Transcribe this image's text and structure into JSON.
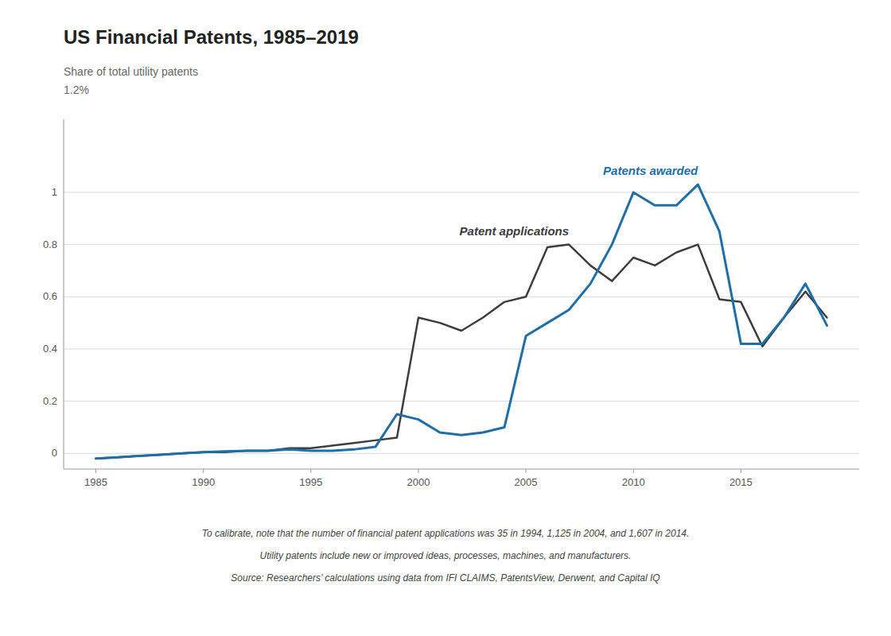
{
  "chart_data": {
    "type": "line",
    "title": "US Financial Patents, 1985–2019",
    "ylabel": "Share of total utility patents",
    "annotations": [
      "1.2%"
    ],
    "footnotes": [
      "To calibrate, note that the number of financial patent applications was 35 in 1994, 1,125 in 2004, and 1,607 in 2014.",
      "Utility patents include new or improved ideas, processes, machines, and manufacturers.",
      "Source: Researchers’ calculations using data from IFI CLAIMS, PatentsView, Derwent, and Capital IQ"
    ],
    "x": [
      1985,
      1986,
      1987,
      1988,
      1989,
      1990,
      1991,
      1992,
      1993,
      1994,
      1995,
      1996,
      1997,
      1998,
      1999,
      2000,
      2001,
      2002,
      2003,
      2004,
      2005,
      2006,
      2007,
      2008,
      2009,
      2010,
      2011,
      2012,
      2013,
      2014,
      2015,
      2016,
      2017,
      2018,
      2019
    ],
    "series": [
      {
        "name": "Patent applications",
        "color": "#3d3d3d",
        "values": [
          -0.02,
          -0.015,
          -0.01,
          -0.005,
          0.0,
          0.005,
          0.005,
          0.01,
          0.01,
          0.02,
          0.02,
          0.03,
          0.04,
          0.05,
          0.06,
          0.52,
          0.5,
          0.47,
          0.52,
          0.58,
          0.6,
          0.79,
          0.8,
          0.72,
          0.66,
          0.75,
          0.72,
          0.77,
          0.8,
          0.59,
          0.58,
          0.41,
          0.52,
          0.62,
          0.52
        ]
      },
      {
        "name": "Patents awarded",
        "color": "#1e6fa8",
        "values": [
          -0.02,
          -0.015,
          -0.01,
          -0.005,
          0.0,
          0.005,
          0.008,
          0.01,
          0.01,
          0.015,
          0.01,
          0.01,
          0.015,
          0.025,
          0.15,
          0.13,
          0.08,
          0.07,
          0.08,
          0.1,
          0.45,
          0.5,
          0.55,
          0.65,
          0.8,
          1.0,
          0.95,
          0.95,
          1.03,
          0.85,
          0.42,
          0.42,
          0.52,
          0.65,
          0.49
        ]
      }
    ],
    "xlim": [
      1983.5,
      2020.5
    ],
    "xticks": [
      1985,
      1990,
      1995,
      2000,
      2005,
      2010,
      2015
    ],
    "ylim": [
      -0.06,
      1.28
    ],
    "yticks": [
      0,
      0.2,
      0.4,
      0.6,
      0.8,
      1.0
    ],
    "grid": true
  }
}
